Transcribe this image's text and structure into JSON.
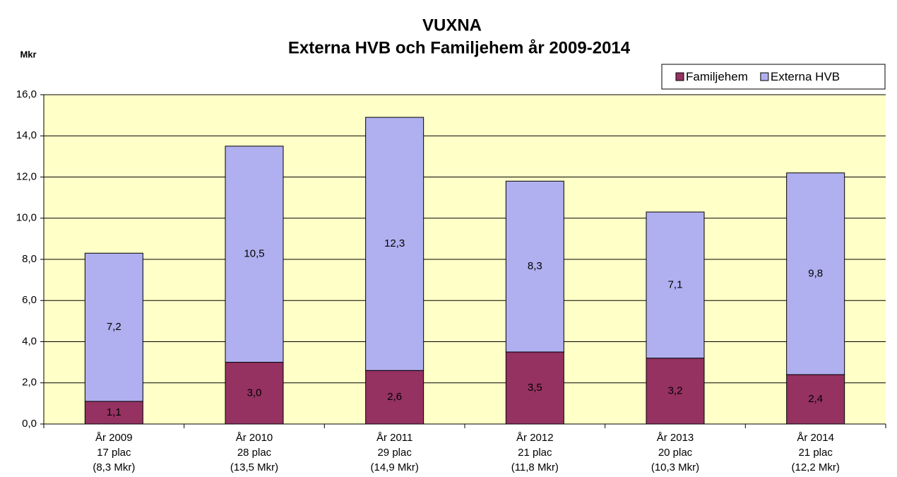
{
  "chart_data": {
    "type": "stacked_bar",
    "title": [
      "VUXNA",
      "Externa HVB och Familjehem år 2009-2014"
    ],
    "y_axis_label": "Mkr",
    "categories": [
      [
        "År 2009",
        "17 plac",
        "(8,3 Mkr)"
      ],
      [
        "År 2010",
        "28 plac",
        "(13,5 Mkr)"
      ],
      [
        "År 2011",
        "29 plac",
        "(14,9 Mkr)"
      ],
      [
        "År 2012",
        "21 plac",
        "(11,8 Mkr)"
      ],
      [
        "År 2013",
        "20 plac",
        "(10,3 Mkr)"
      ],
      [
        "År 2014",
        "21 plac",
        "(12,2 Mkr)"
      ]
    ],
    "series": [
      {
        "name": "Familjehem",
        "color": "#953262",
        "values": [
          1.1,
          3.0,
          2.6,
          3.5,
          3.2,
          2.4
        ],
        "value_labels": [
          "1,1",
          "3,0",
          "2,6",
          "3,5",
          "3,2",
          "2,4"
        ]
      },
      {
        "name": "Externa HVB",
        "color": "#b0b0f0",
        "values": [
          7.2,
          10.5,
          12.3,
          8.3,
          7.1,
          9.8
        ],
        "value_labels": [
          "7,2",
          "10,5",
          "12,3",
          "8,3",
          "7,1",
          "9,8"
        ]
      }
    ],
    "ylim": [
      0,
      16
    ],
    "yticks": [
      {
        "value": 0,
        "label": "0,0"
      },
      {
        "value": 2,
        "label": "2,0"
      },
      {
        "value": 4,
        "label": "4,0"
      },
      {
        "value": 6,
        "label": "6,0"
      },
      {
        "value": 8,
        "label": "8,0"
      },
      {
        "value": 10,
        "label": "10,0"
      },
      {
        "value": 12,
        "label": "12,0"
      },
      {
        "value": 14,
        "label": "14,0"
      },
      {
        "value": 16,
        "label": "16,0"
      }
    ],
    "grid": true,
    "plot_background": "#ffffc8",
    "legend": "top-right"
  }
}
